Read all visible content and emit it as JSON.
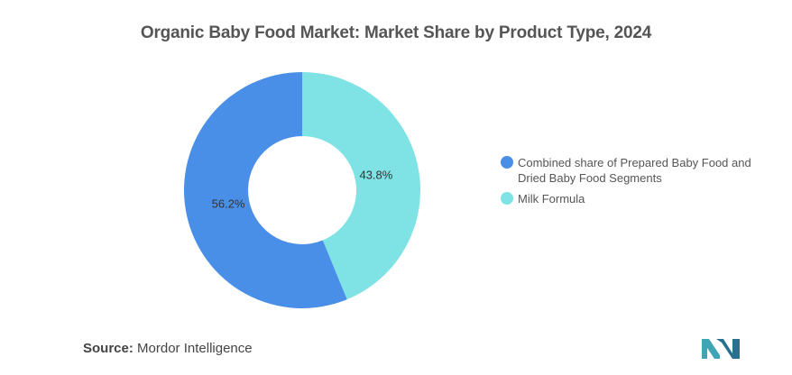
{
  "title": "Organic Baby Food Market: Market Share by Product Type, 2024",
  "source": {
    "label": "Source:",
    "value": "Mordor Intelligence"
  },
  "logo": {
    "icon": "mordor-intelligence-logo-icon",
    "color": "#3fa4b4"
  },
  "chart_data": {
    "type": "pie",
    "variant": "donut",
    "legend_position": "right",
    "series": [
      {
        "name": "Combined share of Prepared Baby Food and Dried Baby Food Segments",
        "name_lines": [
          "Combined share of Prepared Baby Food and",
          "Dried Baby Food Segments"
        ],
        "value": 56.2,
        "label": "56.2%",
        "color": "#4a8fe7"
      },
      {
        "name": "Milk Formula",
        "name_lines": [
          "Milk Formula"
        ],
        "value": 43.8,
        "label": "43.8%",
        "color": "#7fe3e6"
      }
    ]
  }
}
